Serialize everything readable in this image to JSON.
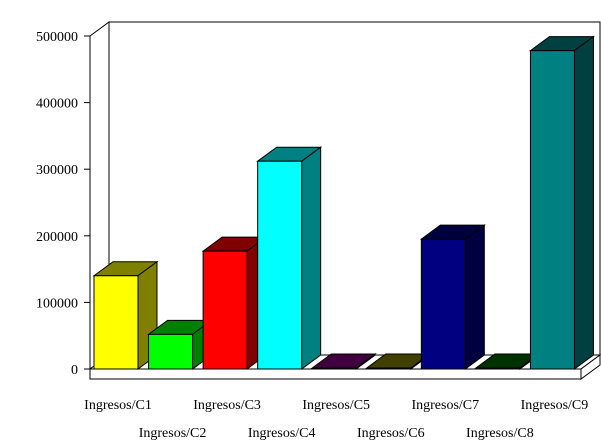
{
  "chart_data": {
    "type": "bar",
    "title": "",
    "xlabel": "",
    "ylabel": "",
    "categories": [
      "Ingresos/C1",
      "Ingresos/C2",
      "Ingresos/C3",
      "Ingresos/C4",
      "Ingresos/C5",
      "Ingresos/C6",
      "Ingresos/C7",
      "Ingresos/C8",
      "Ingresos/C9"
    ],
    "values": [
      140000,
      52000,
      177000,
      312000,
      0,
      0,
      195000,
      0,
      478000
    ],
    "colors": [
      "#ffff00",
      "#00ff00",
      "#ff0000",
      "#00ffff",
      "#800080",
      "#808000",
      "#000080",
      "#006400",
      "#008080"
    ],
    "ylim": [
      0,
      500000
    ],
    "yticks": [
      0,
      100000,
      200000,
      300000,
      400000,
      500000
    ],
    "ytick_labels": [
      "0",
      "100000",
      "200000",
      "300000",
      "400000",
      "500000"
    ],
    "grid": false,
    "legend": "none",
    "style": "3d-bar"
  }
}
